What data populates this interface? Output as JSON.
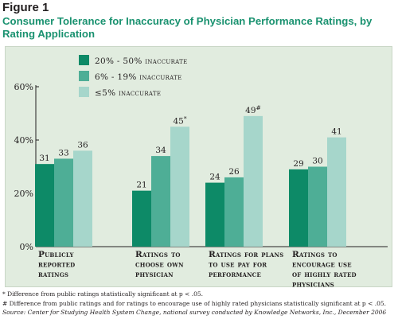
{
  "figure_label": "Figure 1",
  "title": "Consumer Tolerance for Inaccuracy of Physician Performance Ratings, by Rating Application",
  "chart_data": {
    "type": "bar",
    "title": "Consumer Tolerance for Inaccuracy of Physician Performance Ratings, by Rating Application",
    "categories": [
      [
        "Publicly",
        "reported",
        "ratings"
      ],
      [
        "Ratings to",
        "choose own",
        "physician"
      ],
      [
        "Ratings for plans",
        "to use pay for",
        "performance"
      ],
      [
        "Ratings to",
        "encourage use",
        "of highly rated",
        "physicians"
      ]
    ],
    "series": [
      {
        "name": "20% - 50% inaccurate",
        "color": "#0d8a67",
        "values": [
          31,
          21,
          24,
          29
        ],
        "labels": [
          "31",
          "21",
          "24",
          "29"
        ]
      },
      {
        "name": "6% - 19% inaccurate",
        "color": "#4eae96",
        "values": [
          33,
          34,
          26,
          30
        ],
        "labels": [
          "33",
          "34",
          "26",
          "30"
        ]
      },
      {
        "name": "≤5% inaccurate",
        "color": "#a6d6cb",
        "values": [
          36,
          45,
          49,
          41
        ],
        "labels": [
          "36",
          "45*",
          "49#",
          "41"
        ]
      }
    ],
    "y_ticks": [
      {
        "value": 0,
        "label": "0%"
      },
      {
        "value": 20,
        "label": "20%"
      },
      {
        "value": 40,
        "label": "40%"
      },
      {
        "value": 60,
        "label": "60%"
      }
    ],
    "ylim": [
      0,
      60
    ],
    "grid": false,
    "legend_position": "top-left"
  },
  "footnotes": [
    "* Difference from public ratings statistically significant at p < .05.",
    "# Difference from public ratings and for ratings to encourage use of highly rated physicians statistically significant at p < .05."
  ],
  "source": "Source: Center for Studying Health System Change, national survey conducted by Knowledge Networks, Inc., December 2006"
}
